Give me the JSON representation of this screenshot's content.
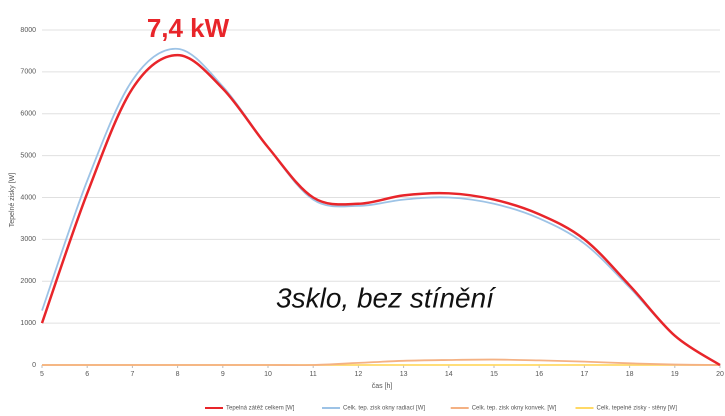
{
  "chart_data": {
    "type": "line",
    "annotations": [
      "7,4 kW",
      "3sklo, bez stínění"
    ],
    "xlabel": "čas [h]",
    "ylabel": "Tepelné zisky [W]",
    "x": [
      5,
      6,
      7,
      8,
      9,
      10,
      11,
      12,
      13,
      14,
      15,
      16,
      17,
      18,
      19,
      20
    ],
    "series": [
      {
        "name": "Tepelná zátěž celkem [W]",
        "color": "#e8252a",
        "values": [
          1000,
          4100,
          6600,
          7400,
          6600,
          5200,
          4000,
          3850,
          4050,
          4100,
          3950,
          3600,
          3000,
          1900,
          700,
          0
        ]
      },
      {
        "name": "Celk. tep. zisk okny radiací [W]",
        "color": "#9dc3e6",
        "values": [
          1300,
          4400,
          6800,
          7550,
          6650,
          5200,
          3950,
          3800,
          3950,
          4000,
          3850,
          3500,
          2900,
          1850,
          700,
          0
        ]
      },
      {
        "name": "Celk. tep. zisk okny konvek. [W]",
        "color": "#f4b183",
        "values": [
          0,
          0,
          0,
          0,
          0,
          0,
          0,
          50,
          100,
          120,
          130,
          110,
          80,
          40,
          10,
          0
        ]
      },
      {
        "name": "Celk. tepelné zisky - stěny [W]",
        "color": "#ffd966",
        "values": [
          0,
          0,
          0,
          0,
          0,
          0,
          0,
          0,
          0,
          0,
          0,
          0,
          0,
          0,
          0,
          0
        ]
      }
    ],
    "xlim": [
      5,
      20
    ],
    "xticks": [
      5,
      6,
      7,
      8,
      9,
      10,
      11,
      12,
      13,
      14,
      15,
      16,
      17,
      18,
      19,
      20
    ],
    "ylim": [
      0,
      8000
    ],
    "yticks": [
      0,
      1000,
      2000,
      3000,
      4000,
      5000,
      6000,
      7000,
      8000
    ],
    "grid": true
  }
}
